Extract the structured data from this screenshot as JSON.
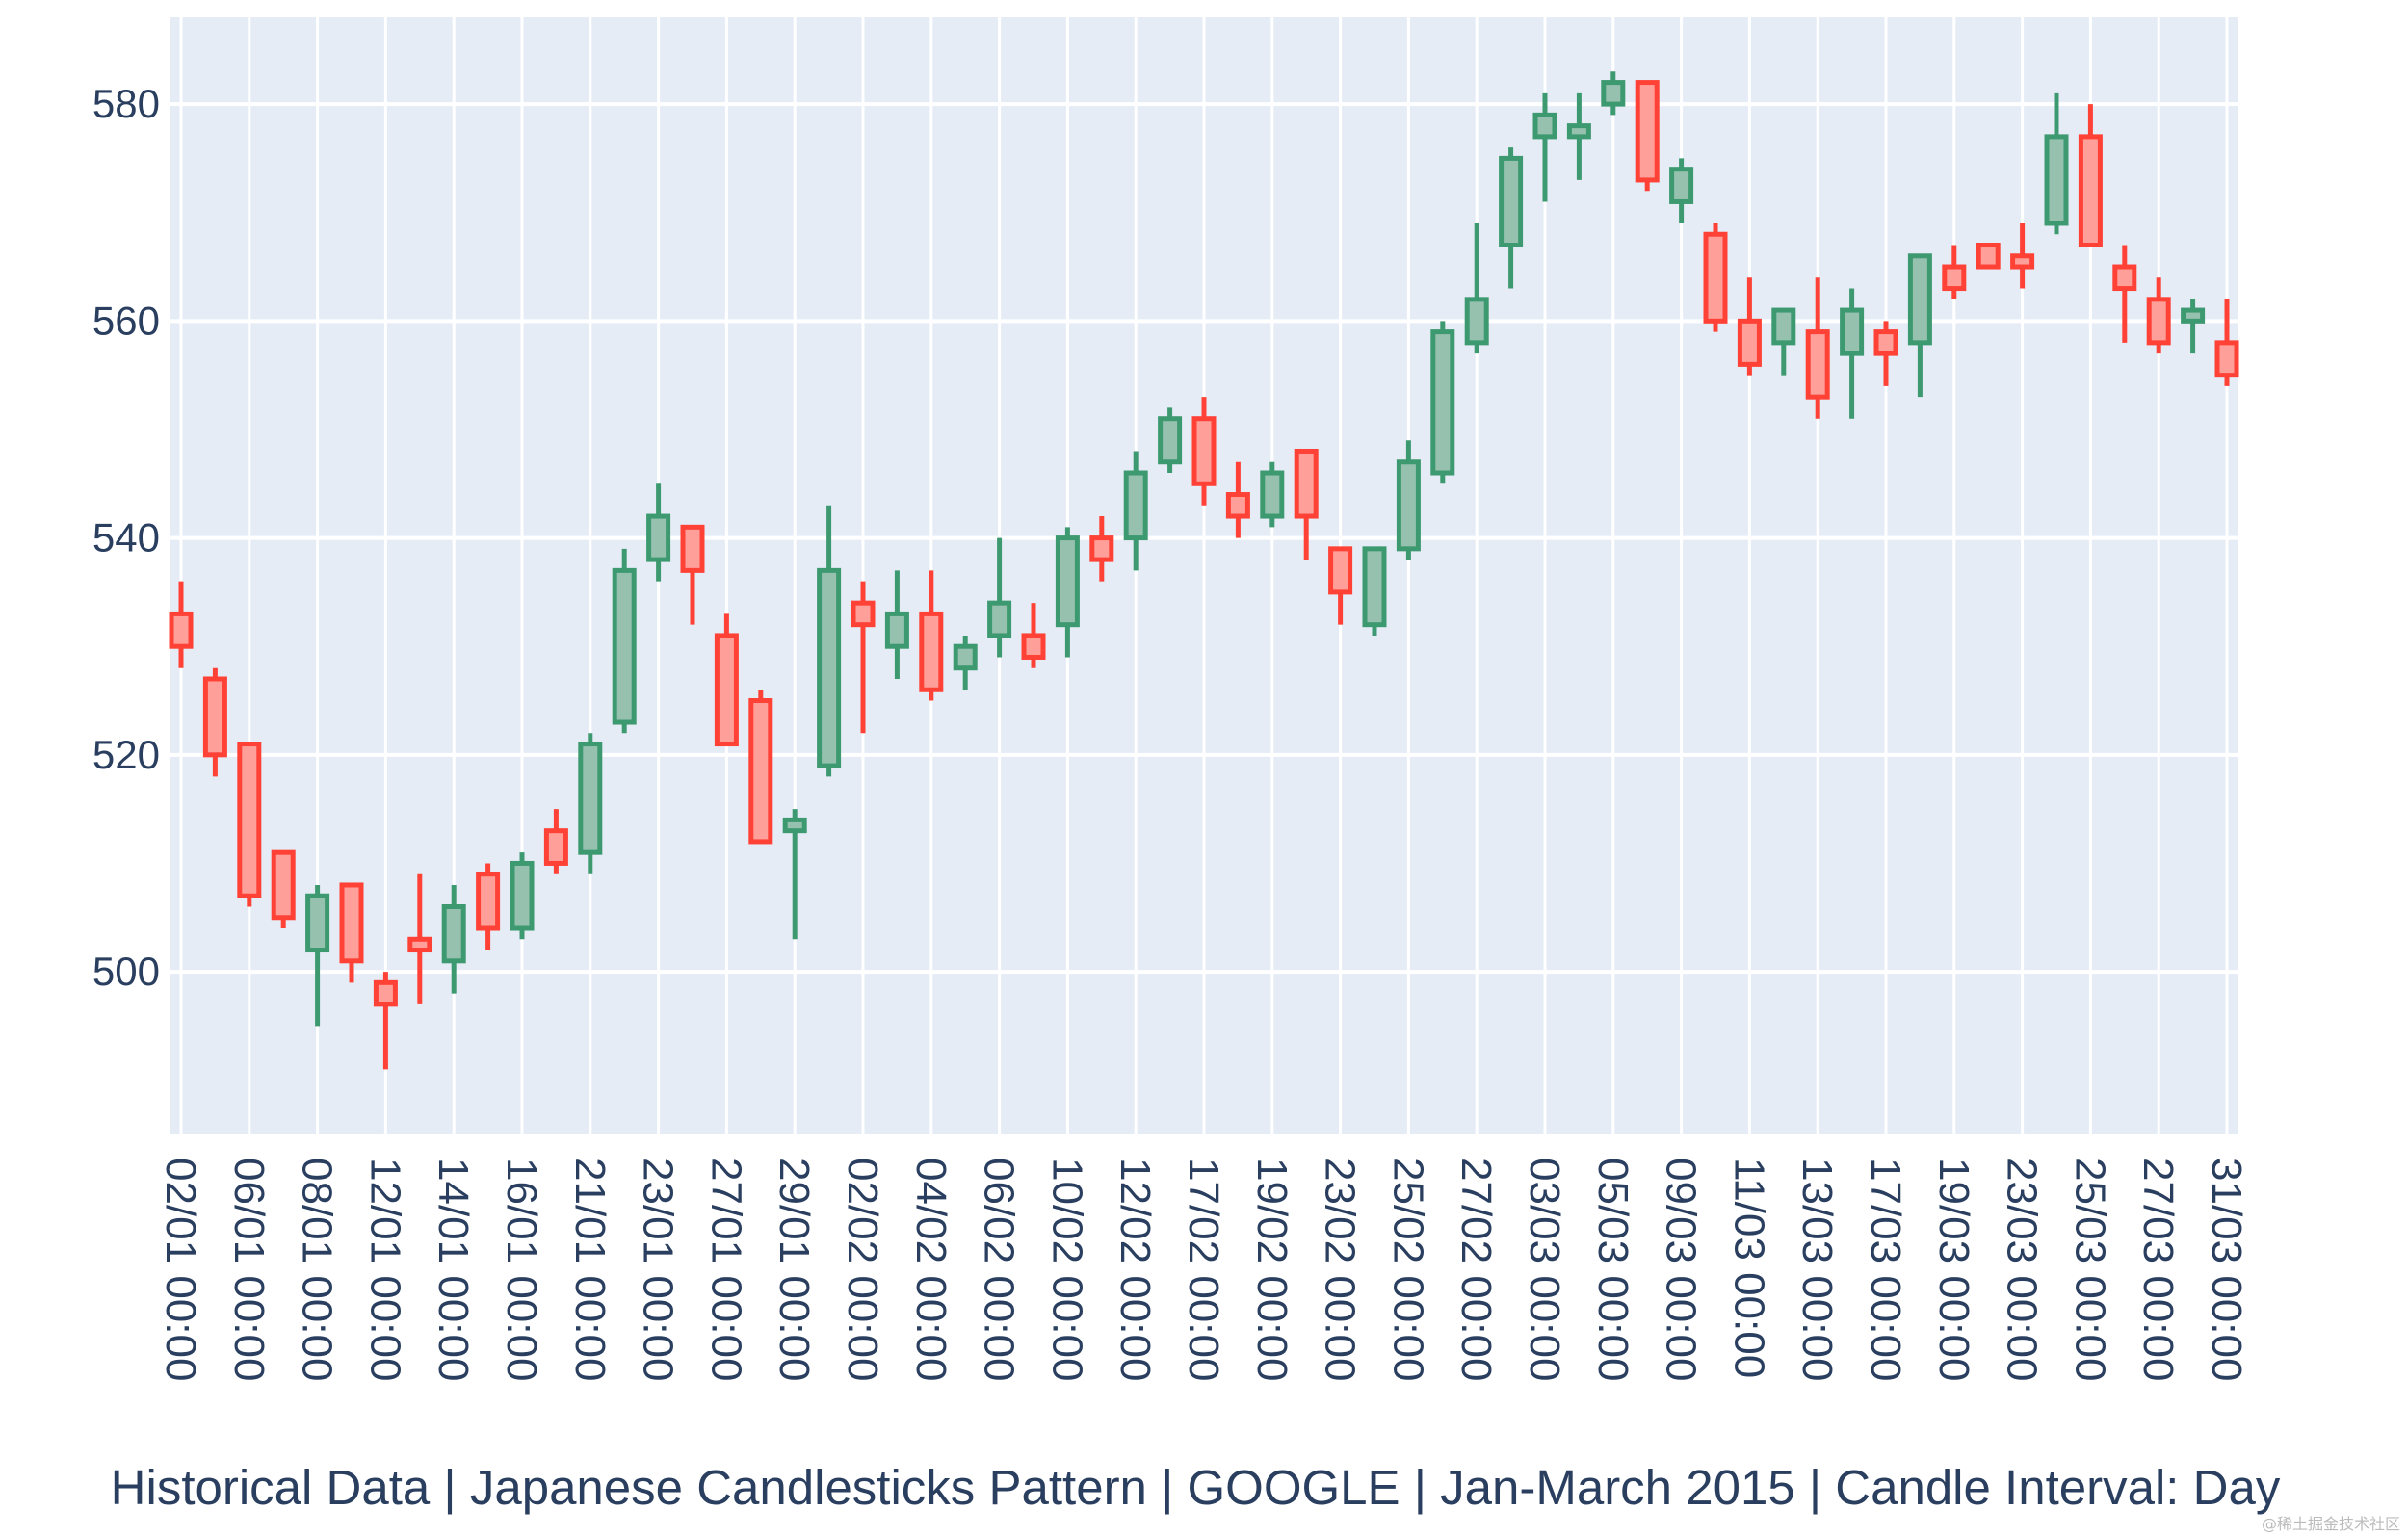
{
  "chart_data": {
    "type": "candlestick",
    "title": "Historical Data | Japanese Candlesticks Pattern | GOOGLE | Jan-March 2015 | Candle Interval: Day",
    "xlabel": "",
    "ylabel": "",
    "ylim": [
      485,
      588
    ],
    "yticks": [
      500,
      520,
      540,
      560,
      580
    ],
    "grid": true,
    "legend": "none",
    "increasing_color": "#3D9970",
    "decreasing_color": "#FF4136",
    "x_tick_labels": [
      "02/01 00:00",
      "06/01 00:00",
      "08/01 00:00",
      "12/01 00:00",
      "14/01 00:00",
      "16/01 00:00",
      "21/01 00:00",
      "23/01 00:00",
      "27/01 00:00",
      "29/01 00:00",
      "02/02 00:00",
      "04/02 00:00",
      "06/02 00:00",
      "10/02 00:00",
      "12/02 00:00",
      "17/02 00:00",
      "19/02 00:00",
      "23/02 00:00",
      "25/02 00:00",
      "27/02 00:00",
      "03/03 00:00",
      "05/03 00:00",
      "09/03 00:00",
      "11/03 00:00",
      "13/03 00:00",
      "17/03 00:00",
      "19/03 00:00",
      "23/03 00:00",
      "25/03 00:00",
      "27/03 00:00",
      "31/03 00:00"
    ],
    "candles": [
      {
        "date": "02/01",
        "open": 533,
        "high": 536,
        "low": 528,
        "close": 530
      },
      {
        "date": "05/01",
        "open": 527,
        "high": 528,
        "low": 518,
        "close": 520
      },
      {
        "date": "06/01",
        "open": 521,
        "high": 521,
        "low": 506,
        "close": 507
      },
      {
        "date": "07/01",
        "open": 511,
        "high": 511,
        "low": 504,
        "close": 505
      },
      {
        "date": "08/01",
        "open": 502,
        "high": 508,
        "low": 495,
        "close": 507
      },
      {
        "date": "09/01",
        "open": 508,
        "high": 508,
        "low": 499,
        "close": 501
      },
      {
        "date": "12/01",
        "open": 499,
        "high": 500,
        "low": 491,
        "close": 497
      },
      {
        "date": "13/01",
        "open": 503,
        "high": 509,
        "low": 497,
        "close": 502
      },
      {
        "date": "14/01",
        "open": 501,
        "high": 508,
        "low": 498,
        "close": 506
      },
      {
        "date": "15/01",
        "open": 509,
        "high": 510,
        "low": 502,
        "close": 504
      },
      {
        "date": "16/01",
        "open": 504,
        "high": 511,
        "low": 503,
        "close": 510
      },
      {
        "date": "20/01",
        "open": 513,
        "high": 515,
        "low": 509,
        "close": 510
      },
      {
        "date": "21/01",
        "open": 511,
        "high": 522,
        "low": 509,
        "close": 521
      },
      {
        "date": "22/01",
        "open": 523,
        "high": 539,
        "low": 522,
        "close": 537
      },
      {
        "date": "23/01",
        "open": 538,
        "high": 545,
        "low": 536,
        "close": 542
      },
      {
        "date": "26/01",
        "open": 541,
        "high": 541,
        "low": 532,
        "close": 537
      },
      {
        "date": "27/01",
        "open": 531,
        "high": 533,
        "low": 521,
        "close": 521
      },
      {
        "date": "28/01",
        "open": 525,
        "high": 526,
        "low": 512,
        "close": 512
      },
      {
        "date": "29/01",
        "open": 513,
        "high": 515,
        "low": 503,
        "close": 514
      },
      {
        "date": "30/01",
        "open": 519,
        "high": 543,
        "low": 518,
        "close": 537
      },
      {
        "date": "02/02",
        "open": 534,
        "high": 536,
        "low": 522,
        "close": 532
      },
      {
        "date": "03/02",
        "open": 530,
        "high": 537,
        "low": 527,
        "close": 533
      },
      {
        "date": "04/02",
        "open": 533,
        "high": 537,
        "low": 525,
        "close": 526
      },
      {
        "date": "05/02",
        "open": 528,
        "high": 531,
        "low": 526,
        "close": 530
      },
      {
        "date": "06/02",
        "open": 531,
        "high": 540,
        "low": 529,
        "close": 534
      },
      {
        "date": "09/02",
        "open": 531,
        "high": 534,
        "low": 528,
        "close": 529
      },
      {
        "date": "10/02",
        "open": 532,
        "high": 541,
        "low": 529,
        "close": 540
      },
      {
        "date": "11/02",
        "open": 540,
        "high": 542,
        "low": 536,
        "close": 538
      },
      {
        "date": "12/02",
        "open": 540,
        "high": 548,
        "low": 537,
        "close": 546
      },
      {
        "date": "13/02",
        "open": 547,
        "high": 552,
        "low": 546,
        "close": 551
      },
      {
        "date": "17/02",
        "open": 551,
        "high": 553,
        "low": 543,
        "close": 545
      },
      {
        "date": "18/02",
        "open": 544,
        "high": 547,
        "low": 540,
        "close": 542
      },
      {
        "date": "19/02",
        "open": 542,
        "high": 547,
        "low": 541,
        "close": 546
      },
      {
        "date": "20/02",
        "open": 548,
        "high": 548,
        "low": 538,
        "close": 542
      },
      {
        "date": "23/02",
        "open": 539,
        "high": 539,
        "low": 532,
        "close": 535
      },
      {
        "date": "24/02",
        "open": 532,
        "high": 539,
        "low": 531,
        "close": 539
      },
      {
        "date": "25/02",
        "open": 539,
        "high": 549,
        "low": 538,
        "close": 547
      },
      {
        "date": "26/02",
        "open": 546,
        "high": 560,
        "low": 545,
        "close": 559
      },
      {
        "date": "27/02",
        "open": 558,
        "high": 569,
        "low": 557,
        "close": 562
      },
      {
        "date": "02/03",
        "open": 567,
        "high": 576,
        "low": 563,
        "close": 575
      },
      {
        "date": "03/03",
        "open": 577,
        "high": 581,
        "low": 571,
        "close": 579
      },
      {
        "date": "04/03",
        "open": 577,
        "high": 581,
        "low": 573,
        "close": 578
      },
      {
        "date": "05/03",
        "open": 580,
        "high": 583,
        "low": 579,
        "close": 582
      },
      {
        "date": "06/03",
        "open": 582,
        "high": 582,
        "low": 572,
        "close": 573
      },
      {
        "date": "09/03",
        "open": 571,
        "high": 575,
        "low": 569,
        "close": 574
      },
      {
        "date": "10/03",
        "open": 568,
        "high": 569,
        "low": 559,
        "close": 560
      },
      {
        "date": "11/03",
        "open": 560,
        "high": 564,
        "low": 555,
        "close": 556
      },
      {
        "date": "12/03",
        "open": 558,
        "high": 561,
        "low": 555,
        "close": 561
      },
      {
        "date": "13/03",
        "open": 559,
        "high": 564,
        "low": 551,
        "close": 553
      },
      {
        "date": "16/03",
        "open": 557,
        "high": 563,
        "low": 551,
        "close": 561
      },
      {
        "date": "17/03",
        "open": 559,
        "high": 560,
        "low": 554,
        "close": 557
      },
      {
        "date": "18/03",
        "open": 558,
        "high": 566,
        "low": 553,
        "close": 566
      },
      {
        "date": "19/03",
        "open": 565,
        "high": 567,
        "low": 562,
        "close": 563
      },
      {
        "date": "20/03",
        "open": 567,
        "high": 567,
        "low": 565,
        "close": 565
      },
      {
        "date": "23/03",
        "open": 566,
        "high": 569,
        "low": 563,
        "close": 565
      },
      {
        "date": "24/03",
        "open": 569,
        "high": 581,
        "low": 568,
        "close": 577
      },
      {
        "date": "25/03",
        "open": 577,
        "high": 580,
        "low": 567,
        "close": 567
      },
      {
        "date": "26/03",
        "open": 565,
        "high": 567,
        "low": 558,
        "close": 563
      },
      {
        "date": "27/03",
        "open": 562,
        "high": 564,
        "low": 557,
        "close": 558
      },
      {
        "date": "30/03",
        "open": 560,
        "high": 562,
        "low": 557,
        "close": 561
      },
      {
        "date": "31/03",
        "open": 558,
        "high": 562,
        "low": 554,
        "close": 555
      }
    ]
  },
  "watermark": "@稀土掘金技术社区"
}
